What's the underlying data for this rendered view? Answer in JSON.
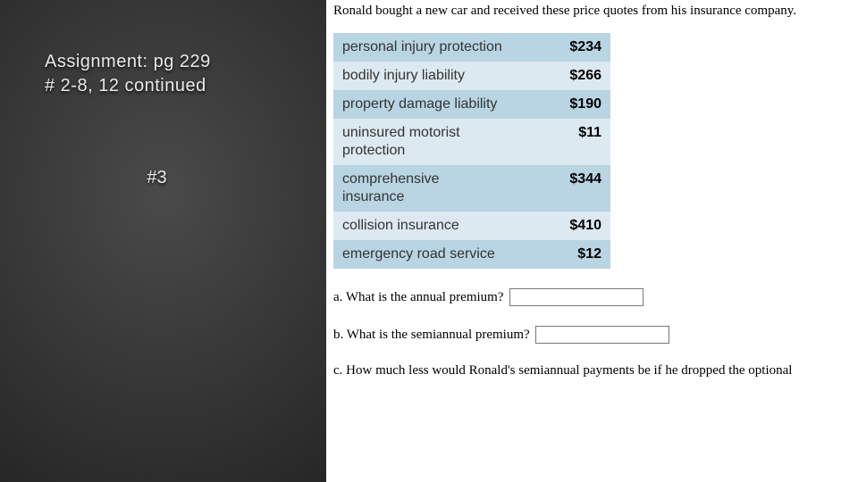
{
  "left": {
    "line1": "Assignment:  pg 229",
    "line2": "# 2-8, 12 continued",
    "problem": "#3"
  },
  "intro": "Ronald bought a new car and received these price quotes from his insurance company.",
  "table": {
    "rows": [
      {
        "label": "personal injury protection",
        "price": "$234"
      },
      {
        "label": "bodily injury liability",
        "price": "$266"
      },
      {
        "label": "property damage liability",
        "price": "$190"
      },
      {
        "label": "uninsured motorist protection",
        "price": "$11"
      },
      {
        "label": "comprehensive insurance",
        "price": "$344"
      },
      {
        "label": "collision insurance",
        "price": "$410"
      },
      {
        "label": "emergency road service",
        "price": "$12"
      }
    ],
    "odd_bg": "#b9d4e3",
    "even_bg": "#dde9f0",
    "label_fontsize": 16,
    "price_fontsize": 16
  },
  "questions": {
    "a": "a. What is the annual premium?",
    "b": "b. What is the semiannual premium?",
    "c": "c. How much less would Ronald's semiannual payments be if he dropped the optional"
  }
}
